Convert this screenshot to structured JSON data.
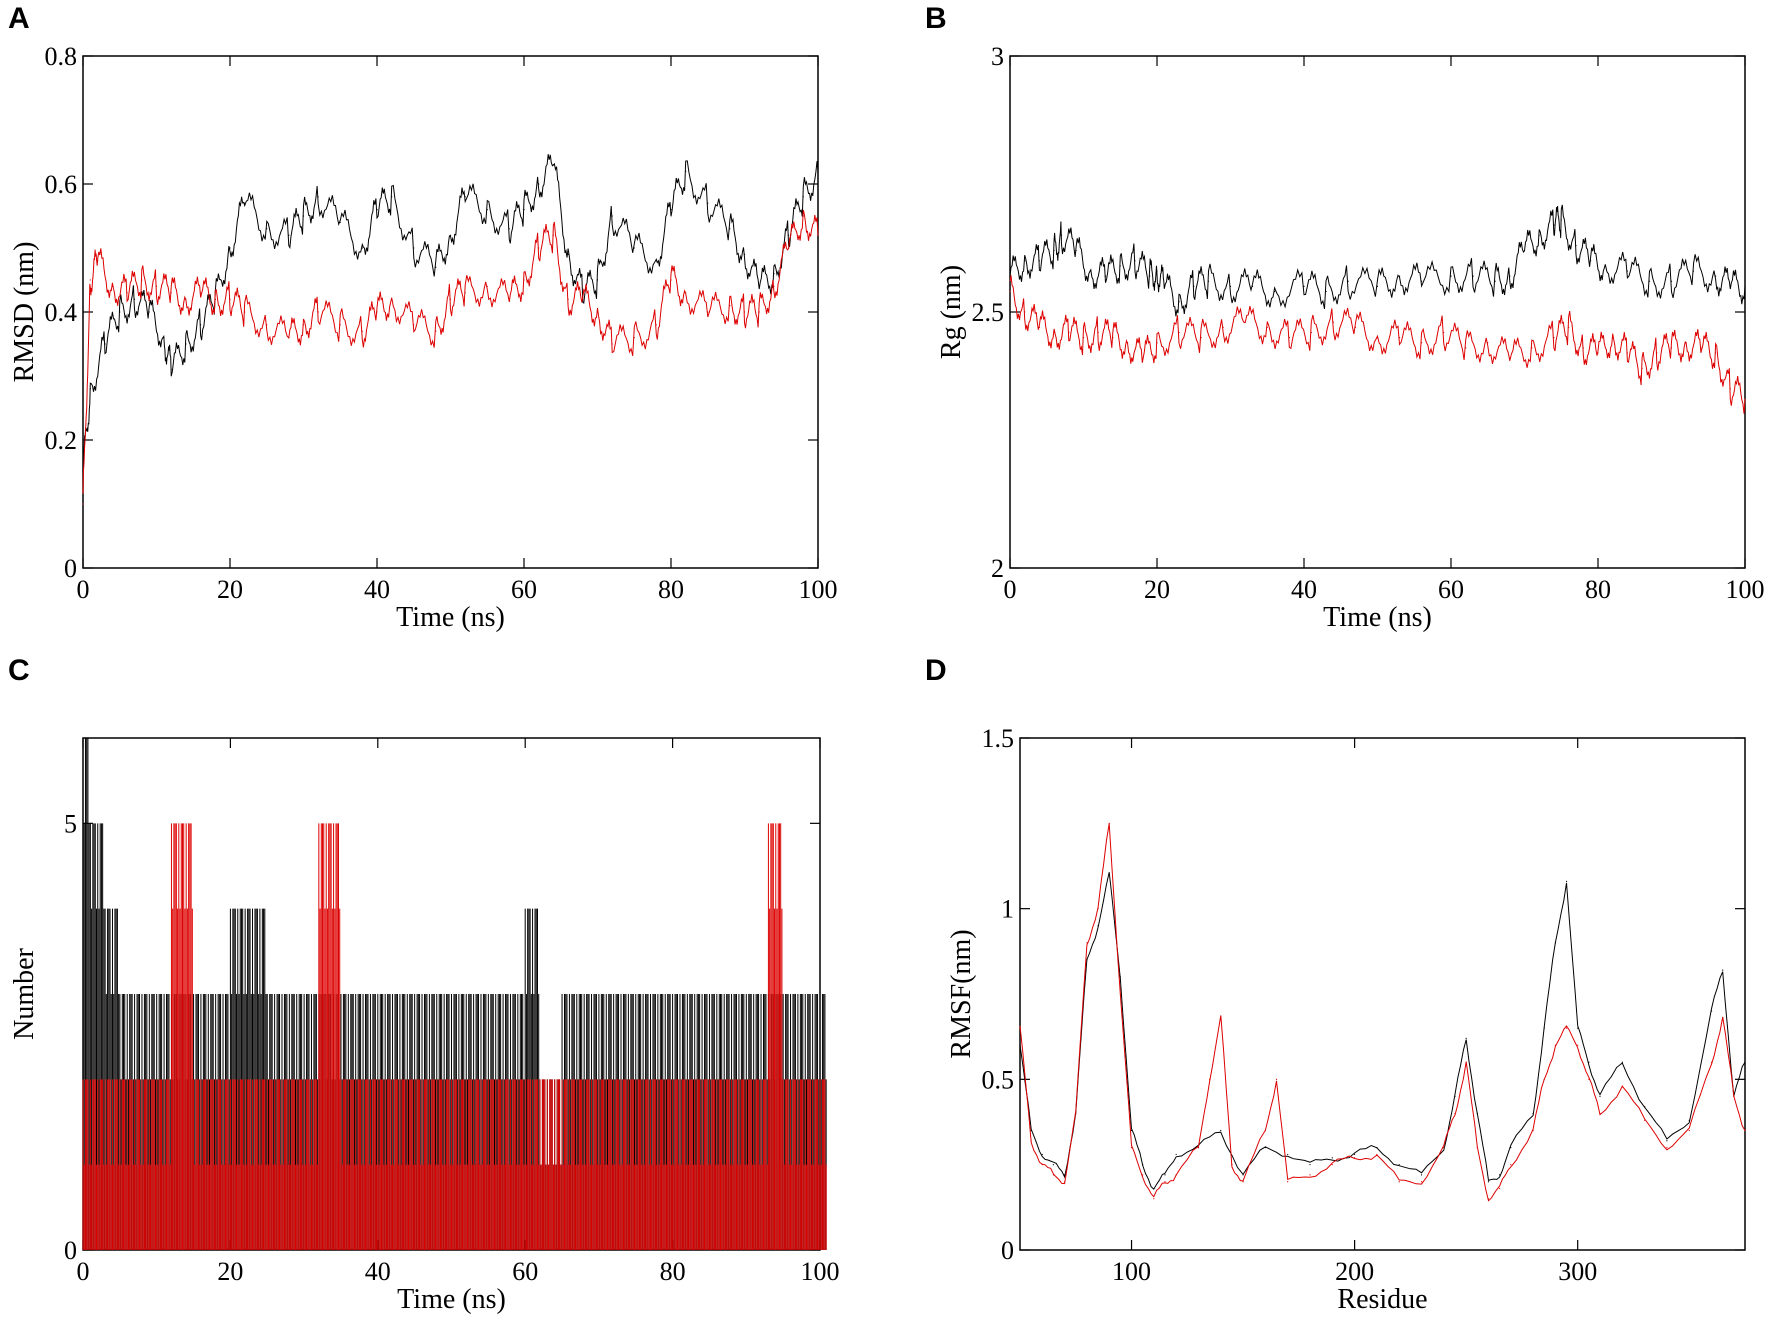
{
  "figure": {
    "panels": [
      "A",
      "B",
      "C",
      "D"
    ]
  },
  "colors": {
    "series1": "#000000",
    "series2": "#dd0000"
  },
  "chart_data": [
    {
      "panel": "A",
      "type": "line",
      "xlabel": "Time (ns)",
      "ylabel": "RMSD (nm)",
      "xlim": [
        0,
        100
      ],
      "ylim": [
        0,
        0.8
      ],
      "xticks": [
        0,
        20,
        40,
        60,
        80,
        100
      ],
      "yticks": [
        0,
        0.2,
        0.4,
        0.6,
        0.8
      ],
      "xtick_labels": [
        "0",
        "20",
        "40",
        "60",
        "80",
        "100"
      ],
      "ytick_labels": [
        "0",
        "0.2",
        "0.4",
        "0.6",
        "0.8"
      ],
      "series": [
        {
          "name": "black",
          "x": [
            0,
            1,
            3,
            5,
            7,
            9,
            11,
            12,
            14,
            16,
            18,
            20,
            22,
            25,
            28,
            30,
            32,
            35,
            38,
            40,
            42,
            45,
            48,
            50,
            52,
            55,
            58,
            60,
            62,
            64,
            66,
            68,
            70,
            72,
            75,
            78,
            80,
            82,
            85,
            88,
            90,
            92,
            94,
            96,
            98,
            100
          ],
          "values": [
            0.15,
            0.28,
            0.35,
            0.4,
            0.42,
            0.4,
            0.36,
            0.31,
            0.35,
            0.38,
            0.42,
            0.5,
            0.57,
            0.53,
            0.52,
            0.55,
            0.58,
            0.54,
            0.5,
            0.56,
            0.58,
            0.5,
            0.47,
            0.52,
            0.58,
            0.56,
            0.53,
            0.56,
            0.6,
            0.63,
            0.49,
            0.43,
            0.45,
            0.55,
            0.5,
            0.48,
            0.56,
            0.62,
            0.57,
            0.53,
            0.49,
            0.44,
            0.46,
            0.52,
            0.58,
            0.62
          ]
        },
        {
          "name": "red",
          "x": [
            0,
            1,
            2,
            4,
            6,
            8,
            10,
            12,
            14,
            16,
            18,
            20,
            22,
            25,
            28,
            30,
            32,
            35,
            38,
            40,
            42,
            45,
            48,
            50,
            52,
            55,
            58,
            60,
            62,
            64,
            66,
            68,
            70,
            72,
            75,
            78,
            80,
            82,
            85,
            88,
            90,
            92,
            94,
            96,
            98,
            100
          ],
          "values": [
            0.1,
            0.45,
            0.48,
            0.44,
            0.43,
            0.45,
            0.44,
            0.43,
            0.42,
            0.43,
            0.42,
            0.42,
            0.4,
            0.38,
            0.36,
            0.38,
            0.4,
            0.38,
            0.37,
            0.4,
            0.42,
            0.38,
            0.37,
            0.42,
            0.43,
            0.44,
            0.42,
            0.45,
            0.5,
            0.52,
            0.42,
            0.42,
            0.4,
            0.35,
            0.36,
            0.38,
            0.45,
            0.43,
            0.4,
            0.41,
            0.4,
            0.4,
            0.44,
            0.5,
            0.55,
            0.52
          ]
        }
      ]
    },
    {
      "panel": "B",
      "type": "line",
      "xlabel": "Time (ns)",
      "ylabel": "Rg (nm)",
      "xlim": [
        0,
        100
      ],
      "ylim": [
        2,
        3
      ],
      "xticks": [
        0,
        20,
        40,
        60,
        80,
        100
      ],
      "yticks": [
        2,
        2.5,
        3
      ],
      "xtick_labels": [
        "0",
        "20",
        "40",
        "60",
        "80",
        "100"
      ],
      "ytick_labels": [
        "2",
        "2.5",
        "3"
      ],
      "series": [
        {
          "name": "black",
          "x": [
            0,
            2,
            4,
            6,
            7,
            9,
            11,
            13,
            15,
            17,
            19,
            20,
            21,
            23,
            25,
            27,
            30,
            33,
            36,
            40,
            43,
            46,
            50,
            53,
            56,
            60,
            63,
            66,
            68,
            70,
            72,
            74,
            75,
            77,
            79,
            81,
            84,
            87,
            90,
            93,
            96,
            98,
            100
          ],
          "values": [
            2.57,
            2.6,
            2.6,
            2.62,
            2.65,
            2.62,
            2.58,
            2.57,
            2.59,
            2.6,
            2.57,
            2.58,
            2.55,
            2.52,
            2.55,
            2.56,
            2.55,
            2.55,
            2.54,
            2.55,
            2.54,
            2.56,
            2.55,
            2.57,
            2.56,
            2.57,
            2.57,
            2.56,
            2.57,
            2.62,
            2.65,
            2.67,
            2.68,
            2.63,
            2.6,
            2.59,
            2.58,
            2.56,
            2.56,
            2.58,
            2.57,
            2.55,
            2.55
          ]
        },
        {
          "name": "red",
          "x": [
            0,
            2,
            4,
            6,
            8,
            10,
            12,
            14,
            16,
            18,
            20,
            23,
            26,
            29,
            32,
            35,
            38,
            41,
            44,
            47,
            50,
            53,
            56,
            59,
            62,
            65,
            68,
            71,
            74,
            76,
            78,
            80,
            82,
            84,
            86,
            88,
            90,
            92,
            94,
            96,
            98,
            100
          ],
          "values": [
            2.54,
            2.5,
            2.47,
            2.46,
            2.46,
            2.45,
            2.46,
            2.45,
            2.44,
            2.41,
            2.44,
            2.46,
            2.45,
            2.47,
            2.48,
            2.47,
            2.45,
            2.46,
            2.48,
            2.47,
            2.45,
            2.45,
            2.44,
            2.46,
            2.43,
            2.44,
            2.41,
            2.43,
            2.45,
            2.47,
            2.43,
            2.42,
            2.45,
            2.42,
            2.39,
            2.42,
            2.43,
            2.44,
            2.43,
            2.42,
            2.35,
            2.33
          ]
        }
      ]
    },
    {
      "panel": "C",
      "type": "bar",
      "xlabel": "Time (ns)",
      "ylabel": "Number",
      "xlim": [
        0,
        100
      ],
      "ylim": [
        0,
        6
      ],
      "xticks": [
        0,
        20,
        40,
        60,
        80,
        100
      ],
      "yticks": [
        0,
        5
      ],
      "xtick_labels": [
        "0",
        "20",
        "40",
        "60",
        "80",
        "100"
      ],
      "ytick_labels": [
        "0",
        "5"
      ],
      "series": [
        {
          "name": "black",
          "x": [
            0,
            1,
            2,
            3,
            5,
            8,
            12,
            18,
            20,
            25,
            30,
            35,
            40,
            45,
            50,
            55,
            58,
            60,
            62,
            63,
            65,
            68,
            70,
            75,
            80,
            85,
            90,
            95,
            100
          ],
          "values": [
            6,
            5,
            5,
            4,
            3,
            3,
            3,
            3,
            4,
            3,
            3,
            3,
            3,
            3,
            3,
            3,
            3,
            4,
            2,
            2,
            3,
            3,
            3,
            3,
            3,
            3,
            3,
            3,
            3
          ]
        },
        {
          "name": "red",
          "x": [
            0,
            5,
            10,
            12,
            15,
            20,
            25,
            30,
            32,
            35,
            40,
            45,
            50,
            55,
            60,
            65,
            70,
            75,
            80,
            85,
            90,
            93,
            95,
            100
          ],
          "values": [
            2,
            2,
            2,
            5,
            2,
            2,
            2,
            2,
            5,
            2,
            2,
            2,
            2,
            2,
            2,
            2,
            2,
            2,
            2,
            2,
            2,
            5,
            2,
            2
          ]
        }
      ]
    },
    {
      "panel": "D",
      "type": "line",
      "xlabel": "Residue",
      "ylabel": "RMSF(nm)",
      "xlim": [
        50,
        375
      ],
      "ylim": [
        0,
        1.5
      ],
      "xticks": [
        100,
        200,
        300
      ],
      "yticks": [
        0,
        0.5,
        1,
        1.5
      ],
      "xtick_labels": [
        "100",
        "200",
        "300"
      ],
      "ytick_labels": [
        "0",
        "0.5",
        "1",
        "1.5"
      ],
      "series": [
        {
          "name": "black",
          "x": [
            50,
            55,
            60,
            65,
            70,
            75,
            80,
            85,
            90,
            95,
            100,
            105,
            110,
            115,
            120,
            130,
            140,
            150,
            160,
            170,
            180,
            190,
            200,
            210,
            220,
            230,
            240,
            245,
            250,
            255,
            260,
            265,
            270,
            280,
            285,
            290,
            295,
            300,
            305,
            310,
            320,
            330,
            340,
            350,
            360,
            365,
            370,
            375
          ],
          "values": [
            0.6,
            0.35,
            0.28,
            0.25,
            0.22,
            0.4,
            0.85,
            0.95,
            1.1,
            0.8,
            0.35,
            0.25,
            0.18,
            0.22,
            0.28,
            0.3,
            0.35,
            0.22,
            0.3,
            0.28,
            0.25,
            0.27,
            0.28,
            0.3,
            0.25,
            0.22,
            0.3,
            0.45,
            0.62,
            0.4,
            0.2,
            0.22,
            0.3,
            0.4,
            0.65,
            0.9,
            1.08,
            0.65,
            0.55,
            0.45,
            0.55,
            0.42,
            0.32,
            0.38,
            0.7,
            0.82,
            0.45,
            0.55
          ]
        },
        {
          "name": "red",
          "x": [
            50,
            55,
            60,
            65,
            70,
            75,
            80,
            85,
            90,
            95,
            100,
            105,
            110,
            115,
            120,
            130,
            135,
            140,
            145,
            150,
            160,
            165,
            170,
            180,
            190,
            200,
            210,
            220,
            230,
            240,
            245,
            250,
            255,
            260,
            265,
            270,
            280,
            285,
            290,
            295,
            300,
            305,
            310,
            320,
            330,
            340,
            350,
            360,
            365,
            370,
            375
          ],
          "values": [
            0.65,
            0.32,
            0.25,
            0.22,
            0.2,
            0.4,
            0.9,
            1.0,
            1.25,
            0.75,
            0.3,
            0.22,
            0.15,
            0.2,
            0.22,
            0.3,
            0.5,
            0.68,
            0.25,
            0.2,
            0.35,
            0.5,
            0.2,
            0.22,
            0.25,
            0.27,
            0.28,
            0.2,
            0.2,
            0.3,
            0.4,
            0.55,
            0.3,
            0.15,
            0.18,
            0.25,
            0.35,
            0.5,
            0.6,
            0.65,
            0.6,
            0.5,
            0.4,
            0.48,
            0.38,
            0.3,
            0.35,
            0.55,
            0.68,
            0.45,
            0.35
          ]
        }
      ]
    }
  ]
}
